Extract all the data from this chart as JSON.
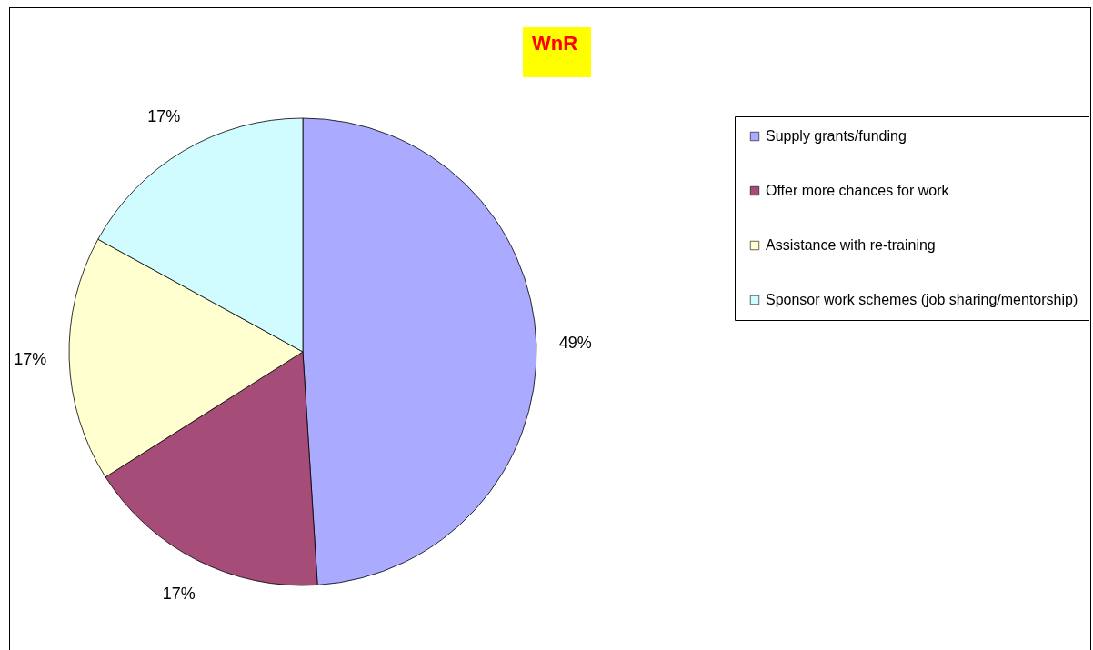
{
  "chart_data": {
    "type": "pie",
    "title": "WnR",
    "categories": [
      "Supply grants/funding",
      "Offer more chances for work",
      "Assistance with re-training",
      "Sponsor work schemes (job sharing/mentorship)"
    ],
    "values": [
      49,
      17,
      17,
      17
    ],
    "colors": [
      "#aaaaff",
      "#a64c78",
      "#ffffd0",
      "#d0fcff"
    ],
    "value_labels": [
      "49%",
      "17%",
      "17%",
      "17%"
    ],
    "legend": "right"
  }
}
